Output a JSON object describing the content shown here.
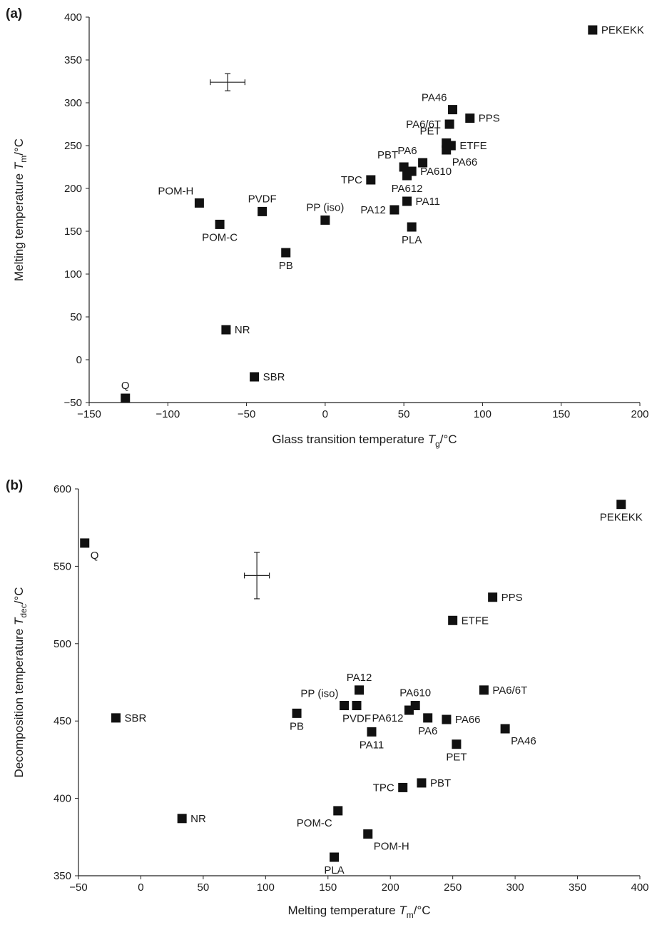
{
  "chart_data": [
    {
      "id": "a",
      "panel_label": "(a)",
      "type": "scatter",
      "xlabel": "Glass transition temperature T",
      "xlabel_sub": "g",
      "xlabel_unit": "/°C",
      "ylabel": "Melting temperature T",
      "ylabel_sub": "m",
      "ylabel_unit": "/°C",
      "xlim": [
        -150,
        200
      ],
      "ylim": [
        -50,
        400
      ],
      "xticks": [
        -150,
        -100,
        -50,
        0,
        50,
        100,
        150,
        200
      ],
      "yticks": [
        -50,
        0,
        50,
        100,
        150,
        200,
        250,
        300,
        350,
        400
      ],
      "grid": false,
      "error_bar": {
        "x": -62,
        "y": 324,
        "x_err": 11,
        "y_err": 10
      },
      "points": [
        {
          "label": "PEKEKK",
          "x": 170,
          "y": 385,
          "anchor": "right"
        },
        {
          "label": "PA46",
          "x": 81,
          "y": 292,
          "anchor": "above-left"
        },
        {
          "label": "PPS",
          "x": 92,
          "y": 282,
          "anchor": "right"
        },
        {
          "label": "PA6/6T",
          "x": 79,
          "y": 275,
          "anchor": "left"
        },
        {
          "label": "PET",
          "x": 77,
          "y": 253,
          "anchor": "above-left"
        },
        {
          "label": "ETFE",
          "x": 80,
          "y": 250,
          "anchor": "right"
        },
        {
          "label": "PA66",
          "x": 77,
          "y": 245,
          "anchor": "below-right"
        },
        {
          "label": "PA6",
          "x": 62,
          "y": 230,
          "anchor": "above-left"
        },
        {
          "label": "PBT",
          "x": 50,
          "y": 225,
          "anchor": "above-left"
        },
        {
          "label": "PA610",
          "x": 55,
          "y": 220,
          "anchor": "right"
        },
        {
          "label": "PA612",
          "x": 52,
          "y": 215,
          "anchor": "below"
        },
        {
          "label": "TPC",
          "x": 29,
          "y": 210,
          "anchor": "left"
        },
        {
          "label": "POM-H",
          "x": -80,
          "y": 183,
          "anchor": "above-left"
        },
        {
          "label": "PVDF",
          "x": -40,
          "y": 173,
          "anchor": "above"
        },
        {
          "label": "PP (iso)",
          "x": 0,
          "y": 163,
          "anchor": "above"
        },
        {
          "label": "PA11",
          "x": 52,
          "y": 185,
          "anchor": "right"
        },
        {
          "label": "PA12",
          "x": 44,
          "y": 175,
          "anchor": "left"
        },
        {
          "label": "POM-C",
          "x": -67,
          "y": 158,
          "anchor": "below"
        },
        {
          "label": "PLA",
          "x": 55,
          "y": 155,
          "anchor": "below"
        },
        {
          "label": "PB",
          "x": -25,
          "y": 125,
          "anchor": "below"
        },
        {
          "label": "NR",
          "x": -63,
          "y": 35,
          "anchor": "right"
        },
        {
          "label": "SBR",
          "x": -45,
          "y": -20,
          "anchor": "right"
        },
        {
          "label": "Q",
          "x": -127,
          "y": -45,
          "anchor": "above"
        }
      ]
    },
    {
      "id": "b",
      "panel_label": "(b)",
      "type": "scatter",
      "xlabel": "Melting temperature T",
      "xlabel_sub": "m",
      "xlabel_unit": "/°C",
      "ylabel": "Decomposition temperature T",
      "ylabel_sub": "dec",
      "ylabel_unit": "/°C",
      "xlim": [
        -50,
        400
      ],
      "ylim": [
        350,
        600
      ],
      "xticks": [
        -50,
        0,
        50,
        100,
        150,
        200,
        250,
        300,
        350,
        400
      ],
      "yticks": [
        350,
        400,
        450,
        500,
        550,
        600
      ],
      "grid": false,
      "error_bar": {
        "x": 93,
        "y": 544,
        "x_err": 10,
        "y_err": 15
      },
      "points": [
        {
          "label": "PEKEKK",
          "x": 385,
          "y": 590,
          "anchor": "below"
        },
        {
          "label": "Q",
          "x": -45,
          "y": 565,
          "anchor": "below-right"
        },
        {
          "label": "PPS",
          "x": 282,
          "y": 530,
          "anchor": "right"
        },
        {
          "label": "ETFE",
          "x": 250,
          "y": 515,
          "anchor": "right"
        },
        {
          "label": "PA6/6T",
          "x": 275,
          "y": 470,
          "anchor": "right"
        },
        {
          "label": "PA12",
          "x": 175,
          "y": 470,
          "anchor": "above"
        },
        {
          "label": "PP (iso)",
          "x": 163,
          "y": 460,
          "anchor": "above-left"
        },
        {
          "label": "PVDF",
          "x": 173,
          "y": 460,
          "anchor": "below"
        },
        {
          "label": "PA610",
          "x": 220,
          "y": 460,
          "anchor": "above"
        },
        {
          "label": "PA612",
          "x": 215,
          "y": 457,
          "anchor": "below-left-small"
        },
        {
          "label": "PA6",
          "x": 230,
          "y": 452,
          "anchor": "below"
        },
        {
          "label": "PA66",
          "x": 245,
          "y": 451,
          "anchor": "right"
        },
        {
          "label": "SBR",
          "x": -20,
          "y": 452,
          "anchor": "right"
        },
        {
          "label": "PB",
          "x": 125,
          "y": 455,
          "anchor": "below"
        },
        {
          "label": "PA46",
          "x": 292,
          "y": 445,
          "anchor": "below-right"
        },
        {
          "label": "PA11",
          "x": 185,
          "y": 443,
          "anchor": "below"
        },
        {
          "label": "PET",
          "x": 253,
          "y": 435,
          "anchor": "below"
        },
        {
          "label": "PBT",
          "x": 225,
          "y": 410,
          "anchor": "right"
        },
        {
          "label": "TPC",
          "x": 210,
          "y": 407,
          "anchor": "left"
        },
        {
          "label": "NR",
          "x": 33,
          "y": 387,
          "anchor": "right"
        },
        {
          "label": "POM-C",
          "x": 158,
          "y": 392,
          "anchor": "below-left"
        },
        {
          "label": "POM-H",
          "x": 182,
          "y": 377,
          "anchor": "below-right"
        },
        {
          "label": "PLA",
          "x": 155,
          "y": 362,
          "anchor": "below"
        }
      ]
    }
  ]
}
